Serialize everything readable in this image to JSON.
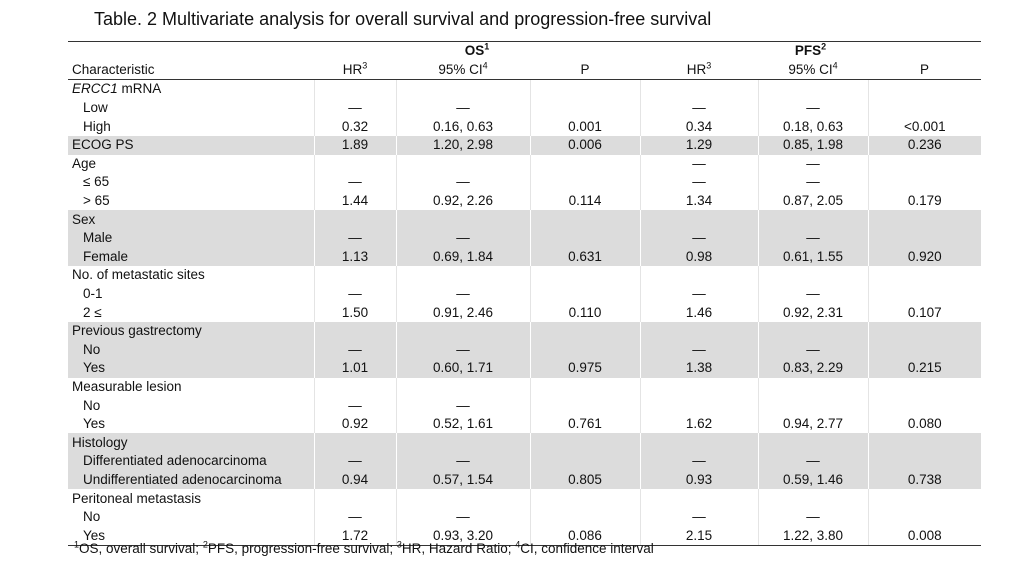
{
  "title": "Table. 2  Multivariate analysis for overall survival and progression-free survival",
  "groups": {
    "os": "OS",
    "os_sup": "1",
    "pfs": "PFS",
    "pfs_sup": "2"
  },
  "columns": {
    "characteristic": "Characteristic",
    "hr": "HR",
    "hr_sup": "3",
    "ci": "95% CI",
    "ci_sup": "4",
    "p": "P"
  },
  "rows": [
    {
      "label": "ERCC1",
      "label_suffix": " mRNA",
      "italic": true,
      "indent": false,
      "shade": false,
      "vals": [
        "",
        "",
        "",
        "",
        "",
        ""
      ]
    },
    {
      "label": "Low",
      "indent": true,
      "shade": false,
      "vals": [
        "—",
        "—",
        "",
        "—",
        "—",
        ""
      ]
    },
    {
      "label": "High",
      "indent": true,
      "shade": false,
      "vals": [
        "0.32",
        "0.16, 0.63",
        "0.001",
        "0.34",
        "0.18, 0.63",
        "<0.001"
      ]
    },
    {
      "label": "ECOG PS",
      "indent": false,
      "shade": true,
      "vals": [
        "1.89",
        "1.20, 2.98",
        "0.006",
        "1.29",
        "0.85, 1.98",
        "0.236"
      ]
    },
    {
      "label": "Age",
      "indent": false,
      "shade": false,
      "vals": [
        "",
        "",
        "",
        "—",
        "—",
        ""
      ]
    },
    {
      "label": "≤ 65",
      "indent": true,
      "shade": false,
      "vals": [
        "—",
        "—",
        "",
        "—",
        "—",
        ""
      ]
    },
    {
      "label": "> 65",
      "indent": true,
      "shade": false,
      "vals": [
        "1.44",
        "0.92, 2.26",
        "0.114",
        "1.34",
        "0.87, 2.05",
        "0.179"
      ]
    },
    {
      "label": "Sex",
      "indent": false,
      "shade": true,
      "vals": [
        "",
        "",
        "",
        "",
        "",
        ""
      ]
    },
    {
      "label": "Male",
      "indent": true,
      "shade": true,
      "vals": [
        "—",
        "—",
        "",
        "—",
        "—",
        ""
      ]
    },
    {
      "label": "Female",
      "indent": true,
      "shade": true,
      "vals": [
        "1.13",
        "0.69, 1.84",
        "0.631",
        "0.98",
        "0.61, 1.55",
        "0.920"
      ]
    },
    {
      "label": "No. of metastatic sites",
      "indent": false,
      "shade": false,
      "vals": [
        "",
        "",
        "",
        "",
        "",
        ""
      ]
    },
    {
      "label": "0-1",
      "indent": true,
      "shade": false,
      "vals": [
        "—",
        "—",
        "",
        "—",
        "—",
        ""
      ]
    },
    {
      "label": "2 ≤",
      "indent": true,
      "shade": false,
      "vals": [
        "1.50",
        "0.91, 2.46",
        "0.110",
        "1.46",
        "0.92, 2.31",
        "0.107"
      ]
    },
    {
      "label": "Previous gastrectomy",
      "indent": false,
      "shade": true,
      "vals": [
        "",
        "",
        "",
        "",
        "",
        ""
      ]
    },
    {
      "label": "No",
      "indent": true,
      "shade": true,
      "vals": [
        "—",
        "—",
        "",
        "—",
        "—",
        ""
      ]
    },
    {
      "label": "Yes",
      "indent": true,
      "shade": true,
      "vals": [
        "1.01",
        "0.60, 1.71",
        "0.975",
        "1.38",
        "0.83, 2.29",
        "0.215"
      ]
    },
    {
      "label": "Measurable lesion",
      "indent": false,
      "shade": false,
      "vals": [
        "",
        "",
        "",
        "",
        "",
        ""
      ]
    },
    {
      "label": "No",
      "indent": true,
      "shade": false,
      "vals": [
        "—",
        "—",
        "",
        "",
        "",
        ""
      ]
    },
    {
      "label": "Yes",
      "indent": true,
      "shade": false,
      "vals": [
        "0.92",
        "0.52, 1.61",
        "0.761",
        "1.62",
        "0.94, 2.77",
        "0.080"
      ]
    },
    {
      "label": "Histology",
      "indent": false,
      "shade": true,
      "vals": [
        "",
        "",
        "",
        "",
        "",
        ""
      ]
    },
    {
      "label": "Differentiated adenocarcinoma",
      "indent": true,
      "shade": true,
      "vals": [
        "—",
        "—",
        "",
        "—",
        "—",
        ""
      ]
    },
    {
      "label": "Undifferentiated adenocarcinoma",
      "indent": true,
      "shade": true,
      "vals": [
        "0.94",
        "0.57, 1.54",
        "0.805",
        "0.93",
        "0.59, 1.46",
        "0.738"
      ]
    },
    {
      "label": "Peritoneal metastasis",
      "indent": false,
      "shade": false,
      "vals": [
        "",
        "",
        "",
        "",
        "",
        ""
      ]
    },
    {
      "label": "No",
      "indent": true,
      "shade": false,
      "vals": [
        "—",
        "—",
        "",
        "—",
        "—",
        ""
      ]
    },
    {
      "label": "Yes",
      "indent": true,
      "shade": false,
      "vals": [
        "1.72",
        "0.93, 3.20",
        "0.086",
        "2.15",
        "1.22, 3.80",
        "0.008"
      ]
    }
  ],
  "footnote": {
    "s1": "1",
    "t1": "OS, overall survival; ",
    "s2": "2",
    "t2": "PFS, progression-free survival; ",
    "s3": "3",
    "t3": "HR, Hazard Ratio; ",
    "s4": "4",
    "t4": "CI, confidence interval"
  }
}
